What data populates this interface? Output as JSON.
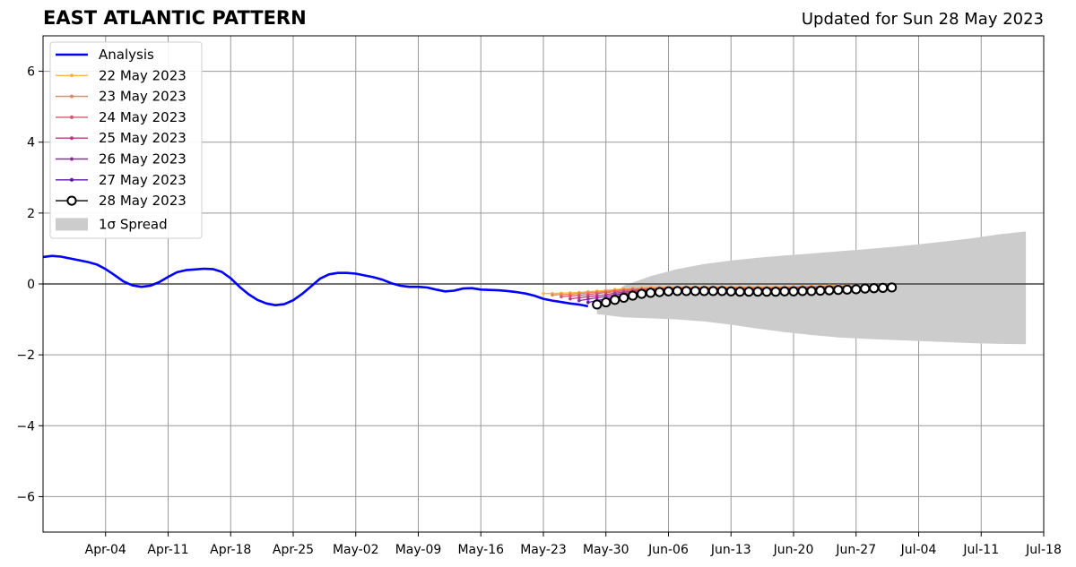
{
  "title": "EAST ATLANTIC PATTERN",
  "subtitle": "Updated for Sun 28 May 2023",
  "colors": {
    "analysis": "#0000ff",
    "spread": "#cccccc",
    "grid": "#999999",
    "forecasts": [
      "#f9b640",
      "#f0824f",
      "#d75a6b",
      "#b33e84",
      "#8d2a9e",
      "#5a189f",
      "#000000"
    ]
  },
  "chart_data": {
    "type": "line",
    "ylim": [
      -7,
      7
    ],
    "yticks": [
      -6,
      -4,
      -2,
      0,
      2,
      4,
      6
    ],
    "ytick_labels": [
      "−6",
      "−4",
      "−2",
      "0",
      "2",
      "4",
      "6"
    ],
    "x_range": [
      "2023-03-28",
      "2023-07-18"
    ],
    "xticks": [
      "2023-04-04",
      "2023-04-11",
      "2023-04-18",
      "2023-04-25",
      "2023-05-02",
      "2023-05-09",
      "2023-05-16",
      "2023-05-23",
      "2023-05-30",
      "2023-06-06",
      "2023-06-13",
      "2023-06-20",
      "2023-06-27",
      "2023-07-04",
      "2023-07-11",
      "2023-07-18"
    ],
    "xtick_labels": [
      "Apr-04",
      "Apr-11",
      "Apr-18",
      "Apr-25",
      "May-02",
      "May-09",
      "May-16",
      "May-23",
      "May-30",
      "Jun-06",
      "Jun-13",
      "Jun-20",
      "Jun-27",
      "Jul-04",
      "Jul-11",
      "Jul-18"
    ],
    "grid": true,
    "legend_position": "top-left",
    "analysis": {
      "name": "Analysis",
      "start": "2023-03-28",
      "values": [
        0.76,
        0.79,
        0.77,
        0.72,
        0.67,
        0.62,
        0.55,
        0.42,
        0.25,
        0.07,
        -0.04,
        -0.08,
        -0.05,
        0.05,
        0.2,
        0.33,
        0.39,
        0.41,
        0.43,
        0.42,
        0.34,
        0.16,
        -0.08,
        -0.29,
        -0.45,
        -0.55,
        -0.6,
        -0.57,
        -0.46,
        -0.28,
        -0.07,
        0.15,
        0.27,
        0.31,
        0.31,
        0.29,
        0.24,
        0.19,
        0.12,
        0.02,
        -0.05,
        -0.08,
        -0.08,
        -0.1,
        -0.16,
        -0.21,
        -0.19,
        -0.13,
        -0.12,
        -0.16,
        -0.17,
        -0.18,
        -0.2,
        -0.23,
        -0.27,
        -0.33,
        -0.42,
        -0.47,
        -0.51,
        -0.55,
        -0.58,
        -0.63
      ]
    },
    "series": [
      {
        "name": "22 May 2023",
        "start": "2023-05-23",
        "values": [
          -0.27,
          -0.27,
          -0.26,
          -0.25,
          -0.24,
          -0.22,
          -0.2,
          -0.18,
          -0.16,
          -0.14,
          -0.12,
          -0.11,
          -0.1,
          -0.1,
          -0.09,
          -0.09,
          -0.09,
          -0.09,
          -0.09,
          -0.09,
          -0.09,
          -0.09,
          -0.09,
          -0.09,
          -0.09,
          -0.09,
          -0.09,
          -0.08,
          -0.08,
          -0.07,
          -0.07,
          -0.06,
          -0.05,
          -0.05,
          -0.05
        ]
      },
      {
        "name": "23 May 2023",
        "start": "2023-05-24",
        "values": [
          -0.31,
          -0.3,
          -0.29,
          -0.27,
          -0.25,
          -0.23,
          -0.21,
          -0.18,
          -0.16,
          -0.14,
          -0.13,
          -0.12,
          -0.11,
          -0.11,
          -0.1,
          -0.1,
          -0.1,
          -0.1,
          -0.1,
          -0.1,
          -0.1,
          -0.1,
          -0.1,
          -0.1,
          -0.1,
          -0.1,
          -0.09,
          -0.09,
          -0.08,
          -0.08,
          -0.07,
          -0.06,
          -0.06,
          -0.06,
          -0.06
        ]
      },
      {
        "name": "24 May 2023",
        "start": "2023-05-25",
        "values": [
          -0.36,
          -0.34,
          -0.32,
          -0.3,
          -0.27,
          -0.24,
          -0.22,
          -0.19,
          -0.17,
          -0.15,
          -0.14,
          -0.13,
          -0.12,
          -0.12,
          -0.12,
          -0.12,
          -0.12,
          -0.12,
          -0.12,
          -0.12,
          -0.12,
          -0.12,
          -0.12,
          -0.12,
          -0.12,
          -0.11,
          -0.11,
          -0.1,
          -0.1,
          -0.09,
          -0.09,
          -0.08,
          -0.08,
          -0.08,
          -0.08
        ]
      },
      {
        "name": "25 May 2023",
        "start": "2023-05-26",
        "values": [
          -0.42,
          -0.39,
          -0.36,
          -0.33,
          -0.3,
          -0.26,
          -0.23,
          -0.2,
          -0.18,
          -0.16,
          -0.15,
          -0.14,
          -0.14,
          -0.14,
          -0.14,
          -0.14,
          -0.14,
          -0.14,
          -0.14,
          -0.14,
          -0.14,
          -0.14,
          -0.14,
          -0.13,
          -0.13,
          -0.12,
          -0.12,
          -0.11,
          -0.11,
          -0.1,
          -0.1,
          -0.1,
          -0.1,
          -0.1,
          -0.1
        ]
      },
      {
        "name": "26 May 2023",
        "start": "2023-05-27",
        "values": [
          -0.47,
          -0.43,
          -0.39,
          -0.35,
          -0.31,
          -0.27,
          -0.24,
          -0.21,
          -0.19,
          -0.17,
          -0.16,
          -0.16,
          -0.16,
          -0.16,
          -0.16,
          -0.16,
          -0.16,
          -0.16,
          -0.16,
          -0.16,
          -0.16,
          -0.16,
          -0.15,
          -0.15,
          -0.14,
          -0.14,
          -0.13,
          -0.13,
          -0.12,
          -0.12,
          -0.11,
          -0.11,
          -0.11,
          -0.11,
          -0.11
        ]
      },
      {
        "name": "27 May 2023",
        "start": "2023-05-28",
        "values": [
          -0.52,
          -0.47,
          -0.42,
          -0.37,
          -0.32,
          -0.28,
          -0.25,
          -0.22,
          -0.2,
          -0.18,
          -0.18,
          -0.18,
          -0.18,
          -0.18,
          -0.18,
          -0.18,
          -0.18,
          -0.18,
          -0.18,
          -0.18,
          -0.18,
          -0.17,
          -0.17,
          -0.16,
          -0.16,
          -0.15,
          -0.15,
          -0.14,
          -0.14,
          -0.13,
          -0.13,
          -0.13,
          -0.13,
          -0.13,
          -0.13
        ]
      },
      {
        "name": "28 May 2023",
        "start": "2023-05-29",
        "values": [
          -0.58,
          -0.52,
          -0.45,
          -0.39,
          -0.33,
          -0.28,
          -0.25,
          -0.23,
          -0.21,
          -0.2,
          -0.2,
          -0.2,
          -0.2,
          -0.2,
          -0.2,
          -0.21,
          -0.22,
          -0.22,
          -0.22,
          -0.22,
          -0.22,
          -0.21,
          -0.21,
          -0.2,
          -0.2,
          -0.19,
          -0.18,
          -0.17,
          -0.16,
          -0.15,
          -0.13,
          -0.12,
          -0.11,
          -0.1
        ]
      }
    ],
    "spread": {
      "name": "1σ Spread",
      "start": "2023-05-29",
      "step_days": 3,
      "upper": [
        -0.58,
        -0.05,
        0.22,
        0.42,
        0.56,
        0.66,
        0.74,
        0.8,
        0.86,
        0.92,
        0.98,
        1.04,
        1.12,
        1.2,
        1.29,
        1.4,
        1.48
      ],
      "lower": [
        -0.85,
        -0.94,
        -0.97,
        -1.0,
        -1.06,
        -1.15,
        -1.26,
        -1.36,
        -1.44,
        -1.51,
        -1.55,
        -1.58,
        -1.61,
        -1.64,
        -1.67,
        -1.69,
        -1.7
      ]
    }
  }
}
